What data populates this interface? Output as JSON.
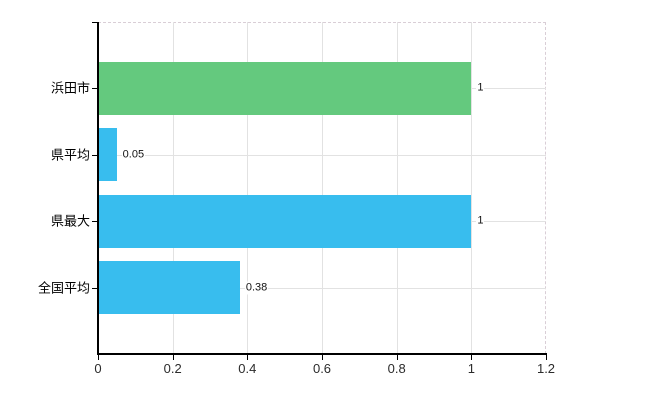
{
  "chart_data": {
    "type": "bar",
    "orientation": "horizontal",
    "title": "",
    "xlabel": "",
    "ylabel": "",
    "categories": [
      "浜田市",
      "県平均",
      "県最大",
      "全国平均"
    ],
    "values": [
      1,
      0.05,
      1,
      0.38
    ],
    "value_labels": [
      "1",
      "0.05",
      "1",
      "0.38"
    ],
    "bar_colors": [
      "#64c97e",
      "#38bdee",
      "#38bdee",
      "#38bdee"
    ],
    "xlim": [
      0,
      1.2
    ],
    "x_ticks": [
      0,
      0.2,
      0.4,
      0.6,
      0.8,
      1,
      1.2
    ],
    "x_tick_labels": [
      "0",
      "0.2",
      "0.4",
      "0.6",
      "0.8",
      "1",
      "1.2"
    ],
    "grid": true,
    "legend": false,
    "colors": {
      "grid": "#e2e2e2",
      "dashed_edge": "#d9ced6",
      "axis": "#000000",
      "category_text": "#000000",
      "tick_text": "#2b2b2b",
      "value_text": "#111111",
      "background": "#ffffff"
    }
  }
}
